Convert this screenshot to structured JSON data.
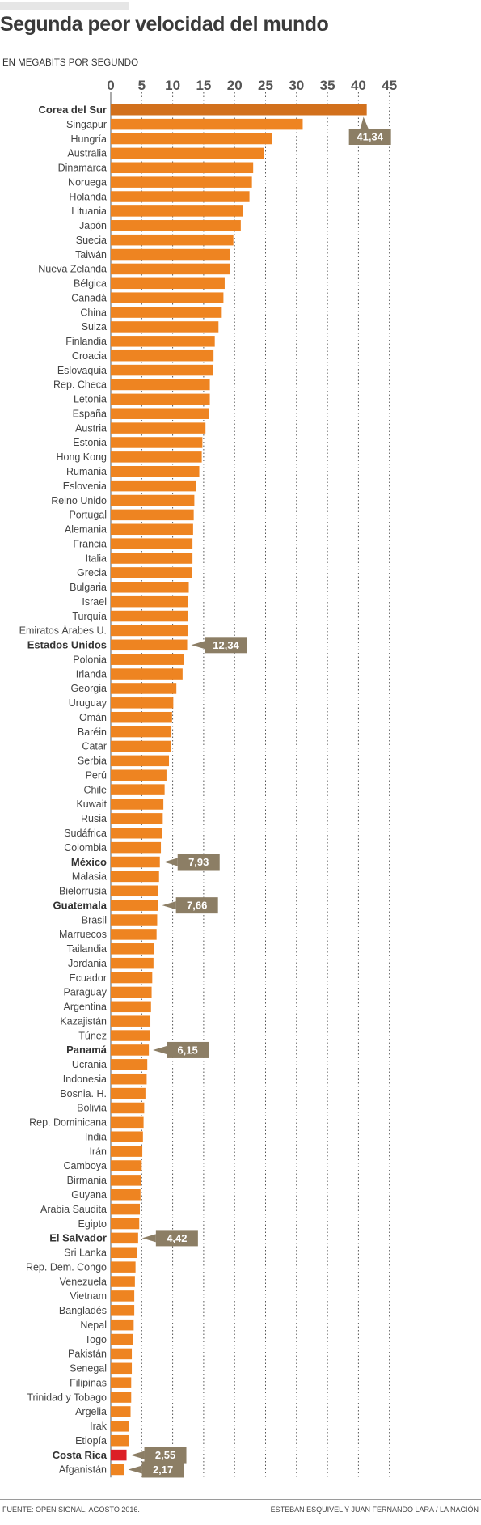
{
  "header": {
    "title": "Segunda peor velocidad del mundo",
    "subtitle": "EN MEGABITS POR SEGUNDO"
  },
  "footer": {
    "source": "FUENTE: OPEN SIGNAL, AGOSTO 2016.",
    "credit": "ESTEBAN ESQUIVEL Y JUAN FERNANDO LARA / LA NACIÓN"
  },
  "colors": {
    "bar": "#ee8421",
    "top_bar": "#d2701c",
    "highlight_bar": "#dc1f26",
    "callout": "#8c7e65",
    "grid": "#555555"
  },
  "chart_data": {
    "type": "bar",
    "orientation": "horizontal",
    "title": "Segunda peor velocidad del mundo",
    "xlabel": "EN MEGABITS POR SEGUNDO",
    "xlim": [
      0,
      45
    ],
    "xticks": [
      0,
      5,
      10,
      15,
      20,
      25,
      30,
      35,
      40,
      45
    ],
    "xtick_labels": [
      "0",
      "5",
      "10",
      "15",
      "20",
      "25",
      "30",
      "35",
      "40",
      "45"
    ],
    "grid": "vertical dotted",
    "categories": [
      "Corea del Sur",
      "Singapur",
      "Hungría",
      "Australia",
      "Dinamarca",
      "Noruega",
      "Holanda",
      "Lituania",
      "Japón",
      "Suecia",
      "Taiwán",
      "Nueva Zelanda",
      "Bélgica",
      "Canadá",
      "China",
      "Suiza",
      "Finlandia",
      "Croacia",
      "Eslovaquia",
      "Rep. Checa",
      "Letonia",
      "España",
      "Austria",
      "Estonia",
      "Hong Kong",
      "Rumania",
      "Eslovenia",
      "Reino Unido",
      "Portugal",
      "Alemania",
      "Francia",
      "Italia",
      "Grecia",
      "Bulgaria",
      "Israel",
      "Turquía",
      "Emiratos Árabes U.",
      "Estados Unidos",
      "Polonia",
      "Irlanda",
      "Georgia",
      "Uruguay",
      "Omán",
      "Baréin",
      "Catar",
      "Serbia",
      "Perú",
      "Chile",
      "Kuwait",
      "Rusia",
      "Sudáfrica",
      "Colombia",
      "México",
      "Malasia",
      "Bielorrusia",
      "Guatemala",
      "Brasil",
      "Marruecos",
      "Tailandia",
      "Jordania",
      "Ecuador",
      "Paraguay",
      "Argentina",
      "Kazajistán",
      "Túnez",
      "Panamá",
      "Ucrania",
      "Indonesia",
      "Bosnia. H.",
      "Bolivia",
      "Rep. Dominicana",
      "India",
      "Irán",
      "Camboya",
      "Birmania",
      "Guyana",
      "Arabia Saudita",
      "Egipto",
      "El Salvador",
      "Sri Lanka",
      "Rep. Dem. Congo",
      "Venezuela",
      "Vietnam",
      "Bangladés",
      "Nepal",
      "Togo",
      "Pakistán",
      "Senegal",
      "Filipinas",
      "Trinidad y Tobago",
      "Argelia",
      "Irak",
      "Etiopía",
      "Costa Rica",
      "Afganistán"
    ],
    "values": [
      41.34,
      31.0,
      26.0,
      24.8,
      23.0,
      22.8,
      22.4,
      21.3,
      21.0,
      19.8,
      19.3,
      19.2,
      18.4,
      18.2,
      17.8,
      17.4,
      16.8,
      16.6,
      16.5,
      16.0,
      16.0,
      15.8,
      15.3,
      14.8,
      14.7,
      14.3,
      13.8,
      13.5,
      13.4,
      13.3,
      13.2,
      13.2,
      13.1,
      12.6,
      12.5,
      12.4,
      12.4,
      12.34,
      11.8,
      11.6,
      10.6,
      10.1,
      9.9,
      9.8,
      9.7,
      9.4,
      9.0,
      8.7,
      8.5,
      8.4,
      8.3,
      8.1,
      7.93,
      7.8,
      7.7,
      7.66,
      7.5,
      7.4,
      7.0,
      6.9,
      6.7,
      6.6,
      6.5,
      6.4,
      6.3,
      6.15,
      5.9,
      5.8,
      5.6,
      5.4,
      5.3,
      5.2,
      5.1,
      5.0,
      4.9,
      4.8,
      4.7,
      4.6,
      4.42,
      4.3,
      4.0,
      3.9,
      3.8,
      3.8,
      3.7,
      3.6,
      3.4,
      3.4,
      3.3,
      3.3,
      3.2,
      3.0,
      2.9,
      2.55,
      2.17
    ],
    "bold_categories": [
      "Corea del Sur",
      "Estados Unidos",
      "México",
      "Guatemala",
      "Panamá",
      "El Salvador",
      "Costa Rica"
    ],
    "highlight_categories": [
      "Costa Rica"
    ],
    "annotations": [
      {
        "category": "Corea del Sur",
        "text": "41,34"
      },
      {
        "category": "Estados Unidos",
        "text": "12,34"
      },
      {
        "category": "México",
        "text": "7,93"
      },
      {
        "category": "Guatemala",
        "text": "7,66"
      },
      {
        "category": "Panamá",
        "text": "6,15"
      },
      {
        "category": "El Salvador",
        "text": "4,42"
      },
      {
        "category": "Costa Rica",
        "text": "2,55"
      },
      {
        "category": "Afganistán",
        "text": "2,17"
      }
    ]
  }
}
